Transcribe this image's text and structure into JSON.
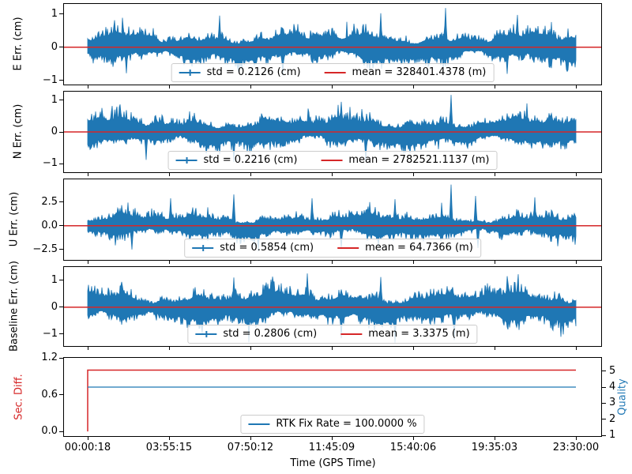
{
  "figure": {
    "title": "",
    "background": "#ffffff"
  },
  "colors": {
    "blue": "#1f77b4",
    "red": "#d62728",
    "axis": "#000000",
    "legend_border": "#cccccc"
  },
  "xaxis": {
    "label": "Time (GPS Time)",
    "tick_labels": [
      "00:00:18",
      "03:55:15",
      "07:50:12",
      "11:45:09",
      "15:40:06",
      "19:35:03",
      "23:30:00"
    ]
  },
  "chart_data": [
    {
      "id": "e-err",
      "type": "line",
      "ylabel": "E Err. (cm)",
      "ylim": [
        -1.12,
        1.3
      ],
      "yticks": [
        {
          "v": 1,
          "label": "1"
        },
        {
          "v": 0,
          "label": "0"
        },
        {
          "v": -1,
          "label": "−1"
        }
      ],
      "series": [
        {
          "name": "std = 0.2126 (cm)",
          "kind": "noise",
          "color": "blue",
          "std_cm": 0.2126,
          "mean_cm": 0,
          "seed": 101,
          "notable_peaks": [
            [
              0.08,
              -0.78
            ],
            [
              0.27,
              0.95
            ],
            [
              0.4,
              -0.85
            ],
            [
              0.6,
              1.02
            ],
            [
              0.733,
              1.18
            ],
            [
              0.86,
              -0.8
            ],
            [
              0.88,
              0.97
            ]
          ]
        },
        {
          "name": "mean = 328401.4378 (m)",
          "kind": "hline",
          "color": "red",
          "y": 0
        }
      ],
      "legend": [
        {
          "label": "std = 0.2126 (cm)",
          "color": "blue",
          "marker": "errorbar"
        },
        {
          "label": "mean = 328401.4378 (m)",
          "color": "red",
          "marker": "line"
        }
      ]
    },
    {
      "id": "n-err",
      "type": "line",
      "ylabel": "N Err. (cm)",
      "ylim": [
        -1.27,
        1.27
      ],
      "yticks": [
        {
          "v": 1,
          "label": "1"
        },
        {
          "v": 0,
          "label": "0"
        },
        {
          "v": -1,
          "label": "−1"
        }
      ],
      "series": [
        {
          "name": "std = 0.2216 (cm)",
          "kind": "noise",
          "color": "blue",
          "std_cm": 0.2216,
          "mean_cm": 0,
          "seed": 202,
          "notable_peaks": [
            [
              0.05,
              0.82
            ],
            [
              0.12,
              -0.88
            ],
            [
              0.3,
              -0.95
            ],
            [
              0.52,
              0.95
            ],
            [
              0.57,
              -0.92
            ],
            [
              0.745,
              1.2
            ],
            [
              0.9,
              0.9
            ]
          ]
        },
        {
          "name": "mean = 2782521.1137 (m)",
          "kind": "hline",
          "color": "red",
          "y": 0
        }
      ],
      "legend": [
        {
          "label": "std = 0.2216 (cm)",
          "color": "blue",
          "marker": "errorbar"
        },
        {
          "label": "mean = 2782521.1137 (m)",
          "color": "red",
          "marker": "line"
        }
      ]
    },
    {
      "id": "u-err",
      "type": "line",
      "ylabel": "U Err. (cm)",
      "ylim": [
        -3.6,
        4.9
      ],
      "yticks": [
        {
          "v": 2.5,
          "label": "2.5"
        },
        {
          "v": 0,
          "label": "0.0"
        },
        {
          "v": -2.5,
          "label": "−2.5"
        }
      ],
      "series": [
        {
          "name": "std = 0.5854 (cm)",
          "kind": "noise",
          "color": "blue",
          "std_cm": 0.5854,
          "mean_cm": 0,
          "seed": 303,
          "notable_peaks": [
            [
              0.083,
              2.45
            ],
            [
              0.09,
              -2.5
            ],
            [
              0.17,
              2.9
            ],
            [
              0.3,
              3.3
            ],
            [
              0.35,
              -2.7
            ],
            [
              0.46,
              2.9
            ],
            [
              0.52,
              -2.45
            ],
            [
              0.63,
              2.8
            ],
            [
              0.744,
              4.35
            ],
            [
              0.794,
              3.15
            ],
            [
              0.8,
              -2.35
            ],
            [
              0.916,
              3.0
            ]
          ]
        },
        {
          "name": "mean = 64.7366 (m)",
          "kind": "hline",
          "color": "red",
          "y": 0
        }
      ],
      "legend": [
        {
          "label": "std = 0.5854 (cm)",
          "color": "blue",
          "marker": "errorbar"
        },
        {
          "label": "mean = 64.7366 (m)",
          "color": "red",
          "marker": "line"
        }
      ]
    },
    {
      "id": "baseline-err",
      "type": "line",
      "ylabel": "Baseline Err. (cm)",
      "ylim": [
        -1.44,
        1.49
      ],
      "yticks": [
        {
          "v": 1,
          "label": "1"
        },
        {
          "v": 0,
          "label": "0"
        },
        {
          "v": -1,
          "label": "−1"
        }
      ],
      "series": [
        {
          "name": "std = 0.2806 (cm)",
          "kind": "noise",
          "color": "blue",
          "std_cm": 0.2806,
          "mean_cm": 0,
          "seed": 404,
          "notable_peaks": [
            [
              0.3,
              1.1
            ],
            [
              0.45,
              1.25
            ],
            [
              0.52,
              -1.15
            ],
            [
              0.6,
              1.12
            ],
            [
              0.63,
              -1.32
            ],
            [
              0.75,
              -1.22
            ],
            [
              0.86,
              1.15
            ],
            [
              0.97,
              -1.1
            ]
          ]
        },
        {
          "name": "mean = 3.3375 (m)",
          "kind": "hline",
          "color": "red",
          "y": 0
        }
      ],
      "legend": [
        {
          "label": "std = 0.2806 (cm)",
          "color": "blue",
          "marker": "errorbar"
        },
        {
          "label": "mean = 3.3375 (m)",
          "color": "red",
          "marker": "line"
        }
      ]
    },
    {
      "id": "quality",
      "type": "status-line",
      "ylabel_left": "Sec. Diff.",
      "ylabel_left_color": "red",
      "ylabel_right": "Quality",
      "ylabel_right_color": "blue",
      "ylim_left": [
        -0.076,
        1.2
      ],
      "yticks_left": [
        {
          "v": 0.0,
          "label": "0.0"
        },
        {
          "v": 0.6,
          "label": "0.6"
        },
        {
          "v": 1.2,
          "label": "1.2"
        }
      ],
      "ylim_right": [
        0.952,
        5.82
      ],
      "yticks_right": [
        {
          "v": 1,
          "label": "1"
        },
        {
          "v": 2,
          "label": "2"
        },
        {
          "v": 3,
          "label": "3"
        },
        {
          "v": 4,
          "label": "4"
        },
        {
          "v": 5,
          "label": "5"
        }
      ],
      "series": [
        {
          "name": "Sec. Diff.",
          "kind": "step",
          "color": "red",
          "axis": "left",
          "points": [
            [
              0,
              0
            ],
            [
              0,
              1
            ],
            [
              1,
              1
            ]
          ]
        },
        {
          "name": "RTK Fix Rate = 100.0000 %",
          "kind": "hline",
          "color": "blue",
          "axis": "right",
          "y": 4
        }
      ],
      "rtk_fix_rate_pct": 100.0,
      "quality_value": 4,
      "legend": [
        {
          "label": "RTK Fix Rate = 100.0000 %",
          "color": "blue",
          "marker": "line"
        }
      ]
    }
  ]
}
